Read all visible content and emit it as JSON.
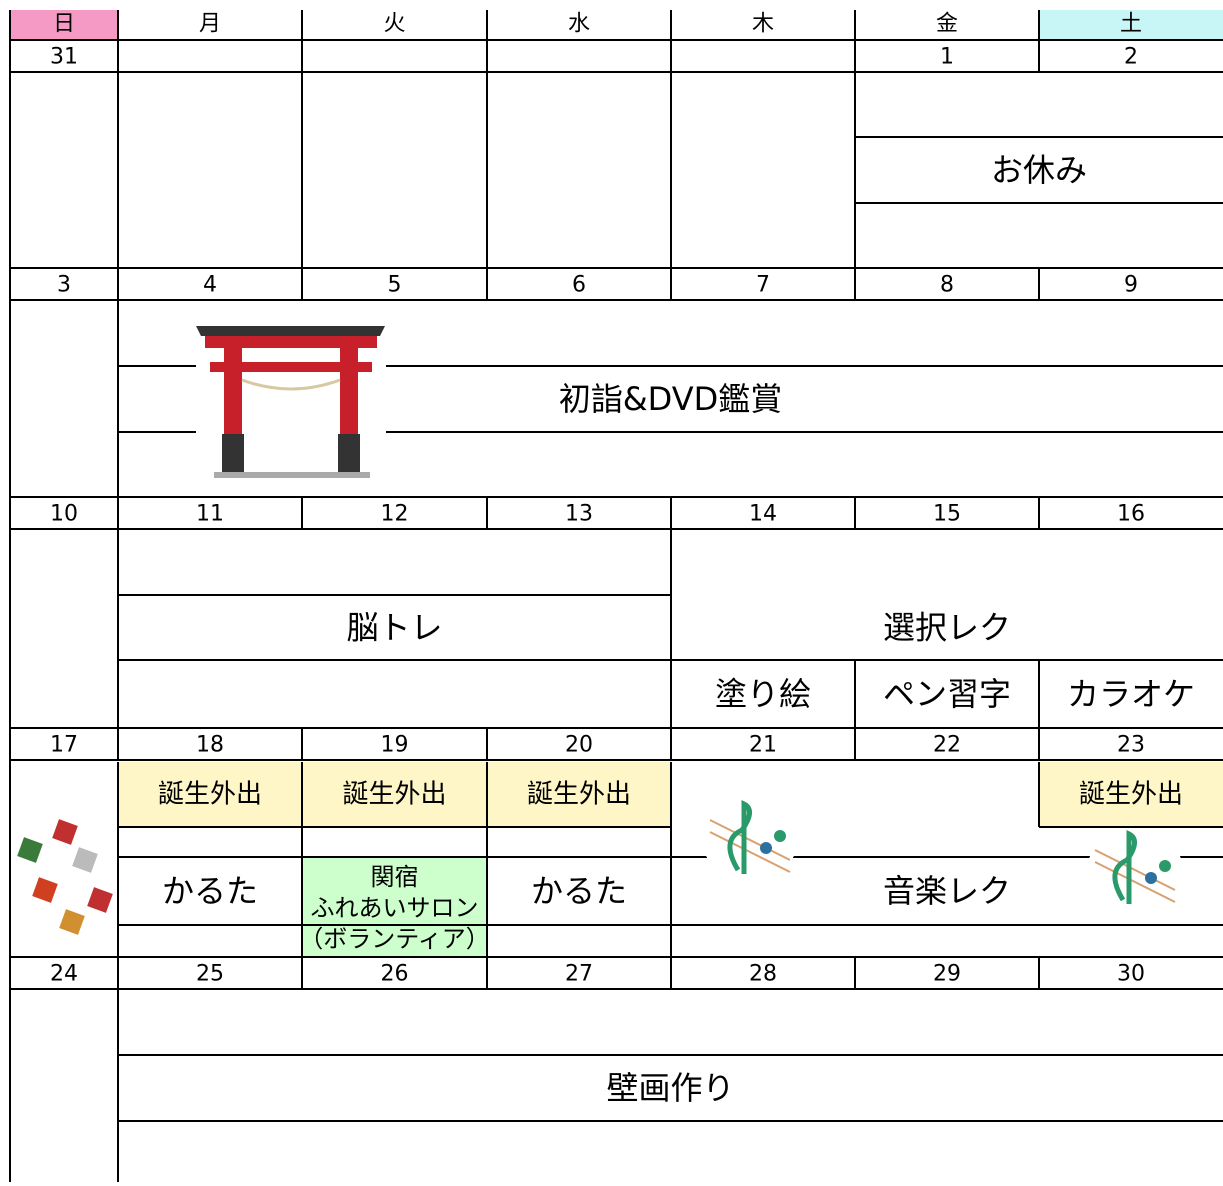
{
  "header": {
    "days": [
      "日",
      "月",
      "火",
      "水",
      "木",
      "金",
      "土"
    ]
  },
  "weeks": [
    {
      "dates": [
        31,
        null,
        null,
        null,
        null,
        1,
        2
      ],
      "events": [
        {
          "label": "お休み"
        }
      ]
    },
    {
      "dates": [
        3,
        4,
        5,
        6,
        7,
        8,
        9
      ],
      "events": [
        {
          "label": "初詣&DVD鑑賞"
        }
      ]
    },
    {
      "dates": [
        10,
        11,
        12,
        13,
        14,
        15,
        16
      ],
      "events": [
        {
          "label": "脳トレ"
        },
        {
          "label": "選択レク"
        },
        {
          "label": "塗り絵"
        },
        {
          "label": "ペン習字"
        },
        {
          "label": "カラオケ"
        }
      ]
    },
    {
      "dates": [
        17,
        18,
        19,
        20,
        21,
        22,
        23
      ],
      "events": [
        {
          "label": "誕生外出"
        },
        {
          "label": "誕生外出"
        },
        {
          "label": "誕生外出"
        },
        {
          "label": "誕生外出"
        },
        {
          "label": "かるた"
        },
        {
          "lines": [
            "関宿",
            "ふれあいサロン",
            "（ボランティア）"
          ]
        },
        {
          "label": "かるた"
        },
        {
          "label": "音楽レク"
        }
      ]
    },
    {
      "dates": [
        24,
        25,
        26,
        27,
        28,
        29,
        30
      ],
      "events": [
        {
          "label": "壁画作り"
        }
      ]
    }
  ]
}
